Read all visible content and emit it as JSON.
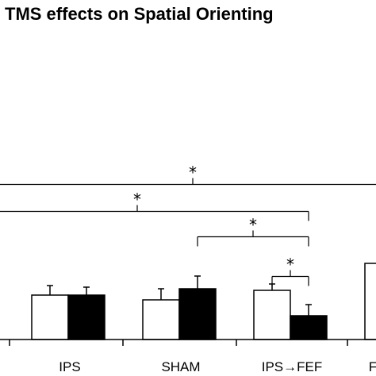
{
  "chart_data": {
    "type": "bar",
    "title": "TMS effects on Spatial Orienting",
    "categories": [
      "IPS",
      "SHAM",
      "IPS→FEF",
      "F"
    ],
    "series": [
      {
        "fill": "#ffffff",
        "values": [
          28,
          25,
          31,
          48
        ],
        "errors": [
          6,
          7,
          4,
          0
        ]
      },
      {
        "fill": "#000000",
        "values": [
          28,
          32,
          15,
          null
        ],
        "errors": [
          5,
          8,
          7,
          null
        ]
      }
    ],
    "ylim": [
      0,
      100
    ],
    "significance": [
      {
        "label": "*",
        "from": "offscreen-left",
        "to": "offscreen-right",
        "level": 98
      },
      {
        "label": "*",
        "from": "offscreen-left",
        "to": "IPS→FEF/1",
        "level": 81
      },
      {
        "label": "*",
        "from": "SHAM/1",
        "to": "IPS→FEF/1",
        "level": 65
      },
      {
        "label": "*",
        "from": "IPS→FEF/0",
        "to": "IPS→FEF/1",
        "level": 40
      }
    ],
    "colors": {
      "axis": "#000000",
      "bar_outline": "#000000"
    }
  }
}
